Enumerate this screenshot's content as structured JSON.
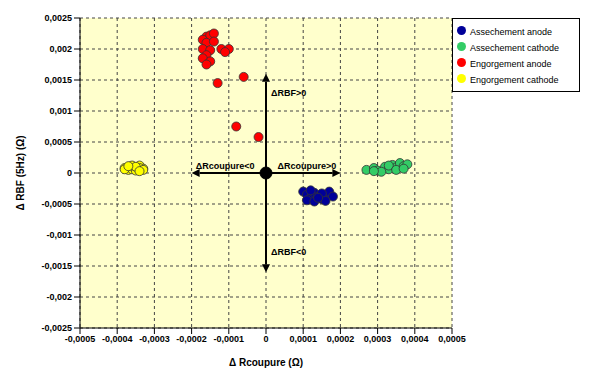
{
  "chart_data": {
    "type": "scatter",
    "x_label": "Δ Rcoupure (Ω)",
    "y_label": "Δ RBF (5Hz) (Ω)",
    "xlim": [
      -0.0005,
      0.0005
    ],
    "ylim": [
      -0.0025,
      0.0025
    ],
    "xticks": [
      {
        "value": -0.0005,
        "label": "-0,0005"
      },
      {
        "value": -0.0004,
        "label": "-0,0004"
      },
      {
        "value": -0.0003,
        "label": "-0,0003"
      },
      {
        "value": -0.0002,
        "label": "-0,0002"
      },
      {
        "value": -0.0001,
        "label": "-0,0001"
      },
      0,
      {
        "value": 0.0001,
        "label": "0,0001"
      },
      {
        "value": 0.0002,
        "label": "0,0002"
      },
      {
        "value": 0.0003,
        "label": "0,0003"
      },
      {
        "value": 0.0004,
        "label": "0,0004"
      },
      {
        "value": 0.0005,
        "label": "0,0005"
      }
    ],
    "yticks": [
      {
        "value": -0.0025,
        "label": "-0,0025"
      },
      {
        "value": -0.002,
        "label": "-0,002"
      },
      {
        "value": -0.0015,
        "label": "-0,0015"
      },
      {
        "value": -0.001,
        "label": "-0,001"
      },
      {
        "value": -0.0005,
        "label": "-0,0005"
      },
      0,
      {
        "value": 0.0005,
        "label": "0,0005"
      },
      {
        "value": 0.001,
        "label": "0,001"
      },
      {
        "value": 0.0015,
        "label": "0,0015"
      },
      {
        "value": 0.002,
        "label": "0,002"
      },
      {
        "value": 0.0025,
        "label": "0,0025"
      }
    ],
    "grid": true,
    "legend": "top right",
    "marker": "circle",
    "series": [
      {
        "name": "Engorgement cathode",
        "color": "#ffff00",
        "x": [
          -0.00038,
          -0.00037,
          -0.00036,
          -0.00035,
          -0.00034,
          -0.00033,
          -0.00037,
          -0.00036,
          -0.00035,
          -0.00034,
          -0.00038,
          -0.00036,
          -0.00035,
          -0.00033,
          -0.00037,
          -0.00034
        ],
        "y": [
          8e-05,
          0.0001,
          0.00011,
          9e-05,
          0.00012,
          7e-05,
          5e-05,
          6e-05,
          4e-05,
          8e-05,
          6e-05,
          0.00012,
          0.0001,
          5e-05,
          0.00011,
          3e-05
        ]
      },
      {
        "name": "Engorgement anode",
        "color": "#ff0000",
        "x": [
          -0.00016,
          -0.00015,
          -0.00014,
          -0.00017,
          -0.00016,
          -0.00014,
          -0.00017,
          -0.00015,
          -0.00016,
          -0.00017,
          -0.00015,
          -0.00016,
          -0.00012,
          -0.0001,
          -0.00011,
          -0.00013,
          -6e-05,
          -8e-05,
          -2e-05
        ],
        "y": [
          0.0022,
          0.00222,
          0.00225,
          0.00215,
          0.0021,
          0.00212,
          0.002,
          0.00198,
          0.0019,
          0.00185,
          0.0018,
          0.00175,
          0.002,
          0.002,
          0.00195,
          0.00145,
          0.00155,
          0.00075,
          0.00058
        ]
      },
      {
        "name": "Assechement cathode",
        "color": "#33cc66",
        "x": [
          0.00027,
          0.00029,
          0.0003,
          0.00032,
          0.00033,
          0.00034,
          0.00035,
          0.00036,
          0.00037,
          0.00038,
          0.00031,
          0.00033,
          0.00029,
          0.00035,
          0.00037
        ],
        "y": [
          5e-05,
          8e-05,
          4e-05,
          0.0001,
          6e-05,
          0.00013,
          9e-05,
          0.00016,
          0.00011,
          0.00014,
          2e-05,
          0.00012,
          3e-05,
          5e-05,
          7e-05
        ]
      },
      {
        "name": "Assechement anode",
        "color": "#000099",
        "x": [
          0.0001,
          0.00011,
          0.00012,
          0.00013,
          0.00014,
          0.00015,
          0.00016,
          0.00017,
          0.00018,
          0.00011,
          0.00013,
          0.00015,
          0.00016,
          0.00012,
          0.00014
        ],
        "y": [
          -0.0003,
          -0.00035,
          -0.0004,
          -0.00032,
          -0.00038,
          -0.00042,
          -0.00035,
          -0.0003,
          -0.00038,
          -0.00044,
          -0.00046,
          -0.00033,
          -0.00045,
          -0.00028,
          -0.0004
        ]
      }
    ],
    "annotations": [
      {
        "text": "ΔRBF>0",
        "x_start": 0,
        "y_start": 0,
        "x": 0,
        "y": 0.0016
      },
      {
        "text": "ΔRcoupure<0",
        "x_start": 0,
        "y_start": 0,
        "x": -0.0002,
        "y": 0
      },
      {
        "text": "ΔRcoupure>0",
        "x_start": 0,
        "y_start": 0,
        "x": 0.0002,
        "y": 0
      },
      {
        "text": "ΔRBF<0",
        "x_start": 0,
        "y_start": 0,
        "x": 0,
        "y": -0.0016
      }
    ]
  }
}
